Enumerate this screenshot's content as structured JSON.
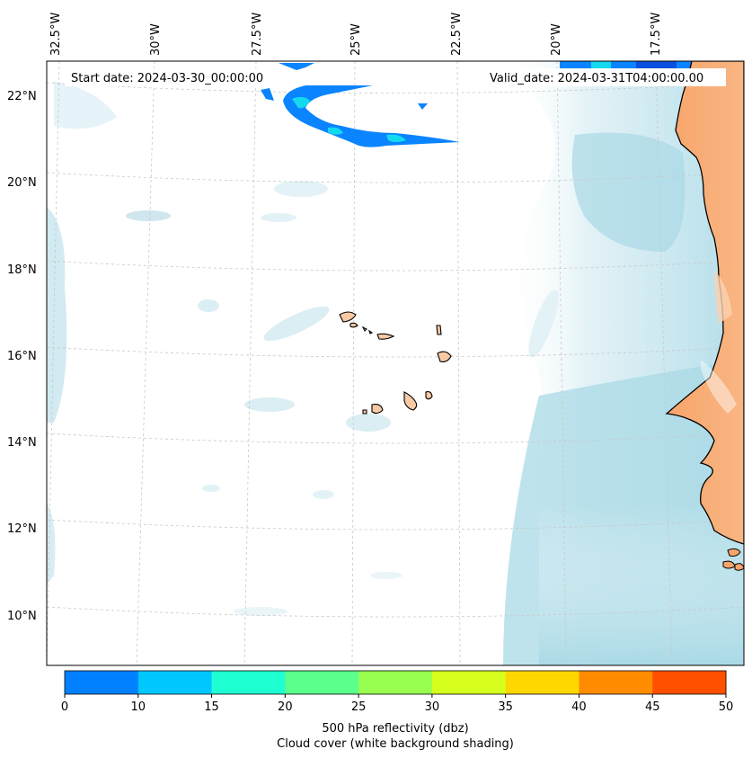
{
  "map": {
    "start_date": "Start date: 2024-03-30_00:00:00",
    "valid_date": "Valid_date: 2024-03-31T04:00:00.00",
    "lon_labels": [
      "32.5°W",
      "30°W",
      "27.5°W",
      "25°W",
      "22.5°W",
      "20°W",
      "17.5°W"
    ],
    "lat_labels": [
      "22°N",
      "20°N",
      "18°N",
      "16°N",
      "14°N",
      "12°N",
      "10°N"
    ]
  },
  "colorbar": {
    "ticks": [
      "0",
      "10",
      "15",
      "20",
      "25",
      "30",
      "35",
      "40",
      "45",
      "50"
    ],
    "colors": [
      "#0080ff",
      "#00c8ff",
      "#1effd2",
      "#5aff8c",
      "#98ff50",
      "#d6ff1e",
      "#ffd700",
      "#ff8c00",
      "#ff5000"
    ],
    "label_line1": "500 hPa reflectivity (dbz)",
    "label_line2": "Cloud cover (white background shading)"
  },
  "colors": {
    "land": "#f7a56a",
    "cloud": "#a9d9e6",
    "reflectivity_blue": "#0a84ff",
    "reflectivity_cyan": "#14d9ee",
    "grid": "#c8c8c8"
  }
}
